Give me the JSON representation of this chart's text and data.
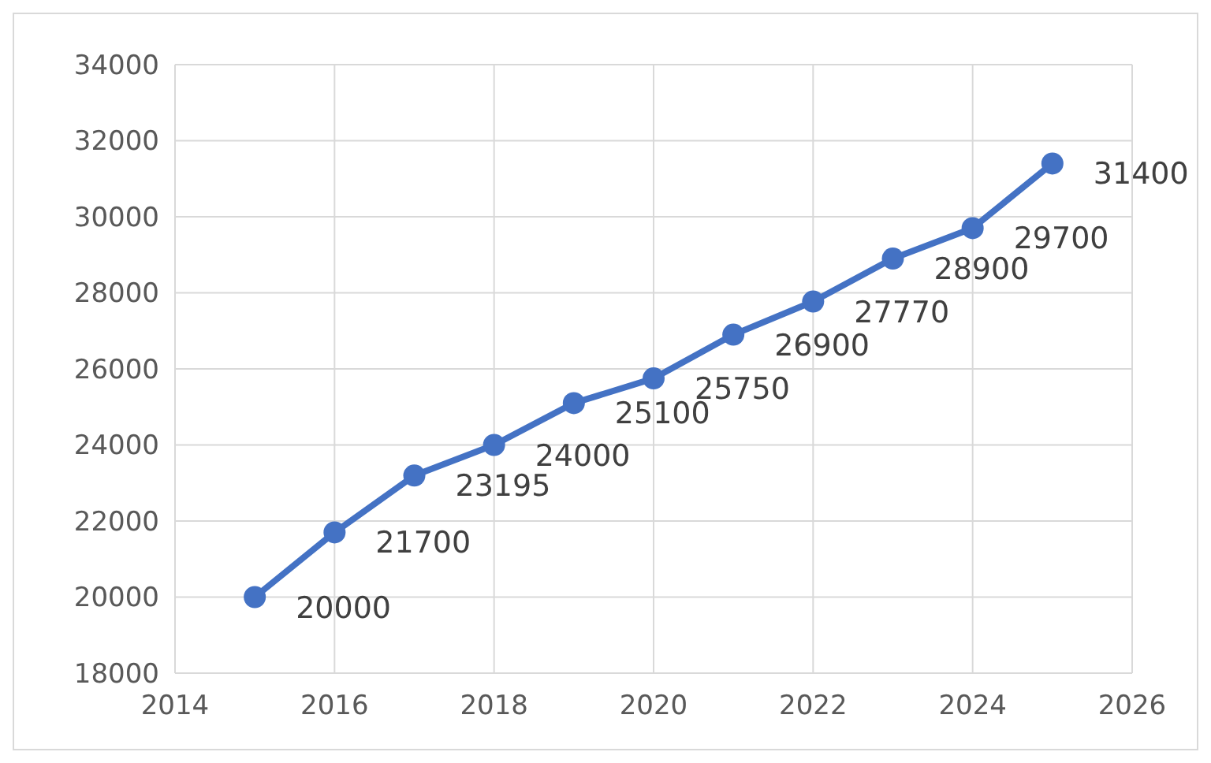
{
  "chart_data": {
    "type": "line",
    "x": [
      2015,
      2016,
      2017,
      2018,
      2019,
      2020,
      2021,
      2022,
      2023,
      2024,
      2025
    ],
    "series": [
      {
        "color": "#4472c4",
        "values": [
          20000,
          21700,
          23195,
          24000,
          25100,
          25750,
          26900,
          27770,
          28900,
          29700,
          31400
        ]
      }
    ],
    "xlim": [
      2014,
      2026
    ],
    "xticks": [
      2014,
      2016,
      2018,
      2020,
      2022,
      2024,
      2026
    ],
    "ylim": [
      18000,
      34000
    ],
    "yticks": [
      18000,
      20000,
      22000,
      24000,
      26000,
      28000,
      30000,
      32000,
      34000
    ],
    "grid": true,
    "marker": "circle",
    "line_style": "solid",
    "data_labels": true
  }
}
